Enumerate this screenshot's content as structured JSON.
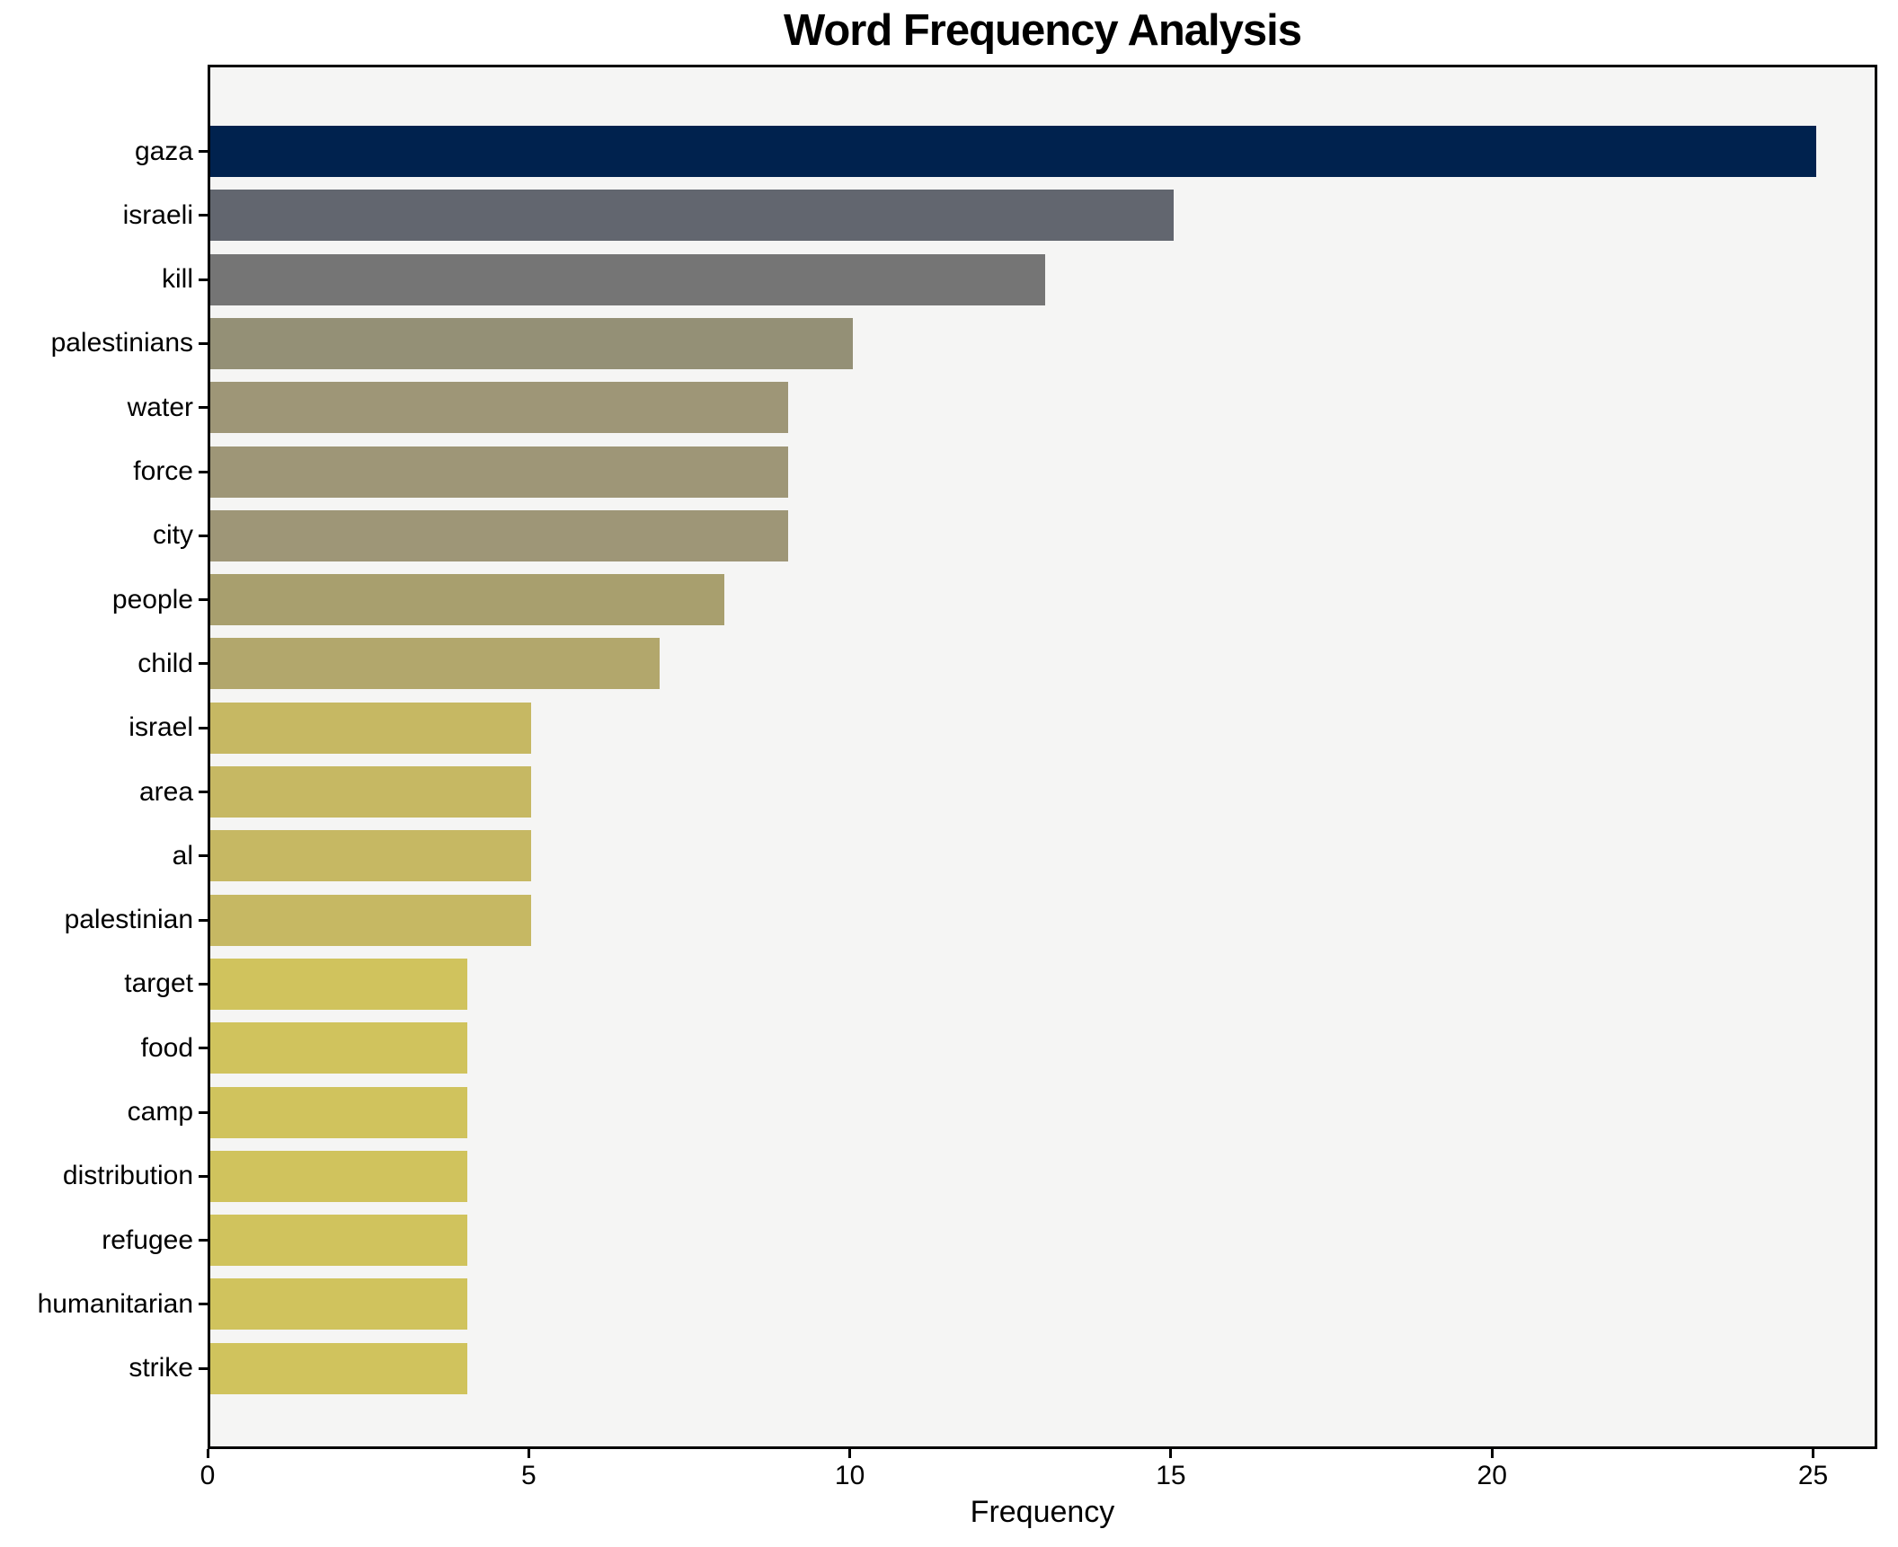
{
  "chart_data": {
    "type": "bar",
    "orientation": "horizontal",
    "title": "Word Frequency Analysis",
    "xlabel": "Frequency",
    "ylabel": "",
    "categories": [
      "gaza",
      "israeli",
      "kill",
      "palestinians",
      "water",
      "force",
      "city",
      "people",
      "child",
      "israel",
      "area",
      "al",
      "palestinian",
      "target",
      "food",
      "camp",
      "distribution",
      "refugee",
      "humanitarian",
      "strike"
    ],
    "values": [
      25,
      15,
      13,
      10,
      9,
      9,
      9,
      8,
      7,
      5,
      5,
      5,
      5,
      4,
      4,
      4,
      4,
      4,
      4,
      4
    ],
    "bar_colors": [
      "#00224e",
      "#62666f",
      "#757575",
      "#949076",
      "#9e9677",
      "#9e9677",
      "#9e9677",
      "#a89f6e",
      "#b2a76c",
      "#c6b863",
      "#c6b863",
      "#c6b863",
      "#c6b863",
      "#d0c35d",
      "#d0c35d",
      "#d0c35d",
      "#d0c35d",
      "#d0c35d",
      "#d0c35d",
      "#d0c35d"
    ],
    "xlim": [
      0,
      26
    ],
    "x_ticks": [
      0,
      5,
      10,
      15,
      20,
      25
    ],
    "grid": false,
    "legend": null,
    "plot_background": "#f5f5f4",
    "figure_background": "#ffffff",
    "spine_color": "#000000"
  }
}
